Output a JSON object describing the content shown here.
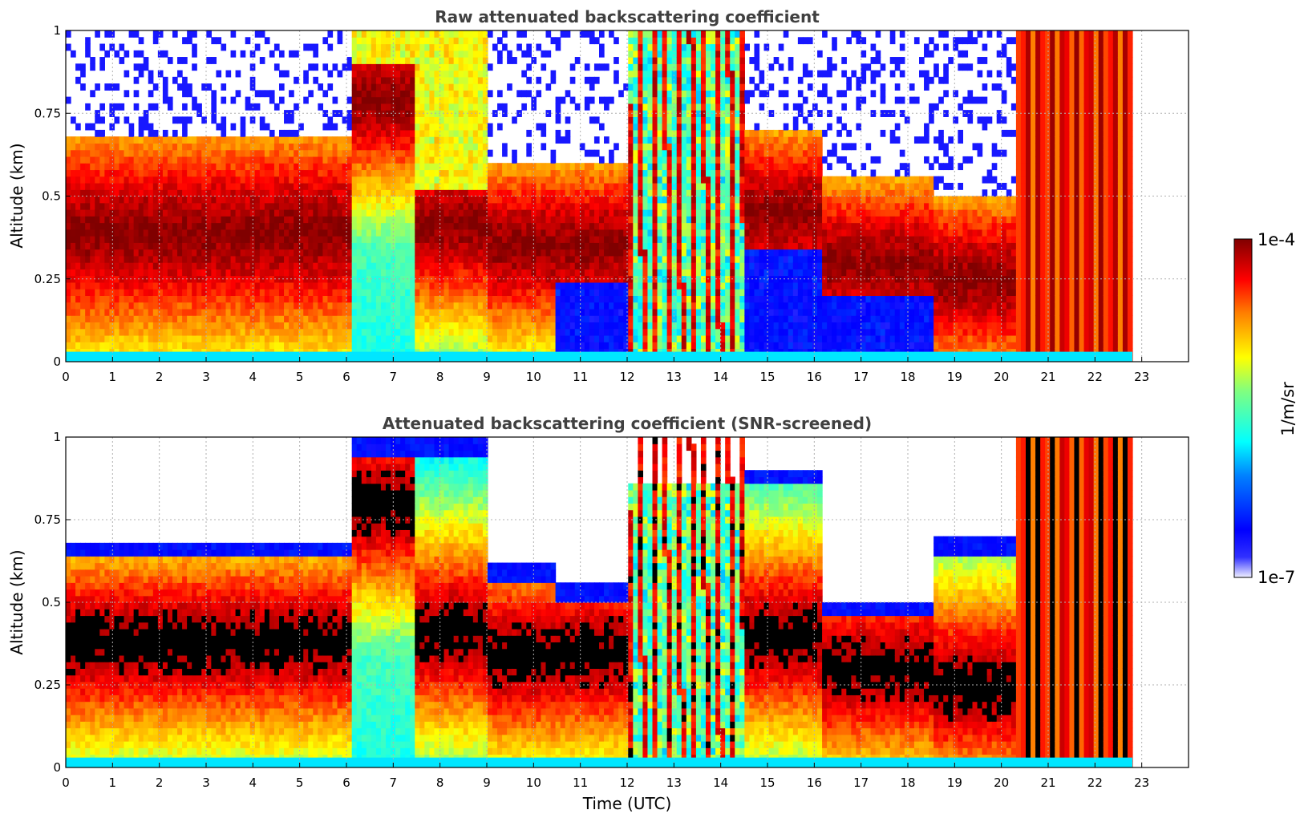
{
  "chart_data": [
    {
      "type": "heatmap",
      "title": "Raw attenuated backscattering coefficient",
      "xlabel": "",
      "ylabel": "Altitude (km)",
      "xlim": [
        0,
        24
      ],
      "ylim": [
        0,
        1
      ],
      "x_ticks": [
        "0",
        "1",
        "2",
        "3",
        "4",
        "5",
        "6",
        "7",
        "8",
        "9",
        "10",
        "11",
        "12",
        "13",
        "14",
        "15",
        "16",
        "17",
        "18",
        "19",
        "20",
        "21",
        "22",
        "23"
      ],
      "y_ticks": [
        "0",
        "0.25",
        "0.5",
        "0.75",
        "1"
      ],
      "grid": true,
      "data_end_time": 22.8,
      "bands": [
        {
          "start": 0,
          "end": 6.1,
          "layer_center": 0.39,
          "layer_depth": 0.12,
          "aloft": "sparse-noise"
        },
        {
          "start": 6.1,
          "end": 7.5,
          "layer_center": 0.8,
          "aloft": "aerosol-yellow"
        },
        {
          "start": 7.5,
          "end": 9.0,
          "layer_center": 0.41,
          "aloft": "aerosol-yellow"
        },
        {
          "start": 9.0,
          "end": 10.5,
          "layer_center": 0.35,
          "layer_depth": 0.1,
          "aloft": "sparse-noise"
        },
        {
          "start": 10.5,
          "end": 12.0,
          "layer_center": 0.35,
          "below": "low-signal-blue"
        },
        {
          "start": 12.0,
          "end": 14.5,
          "description": "precipitation-streaks"
        },
        {
          "start": 14.5,
          "end": 16.2,
          "layer_center": 0.45,
          "below": "low-signal-blue"
        },
        {
          "start": 16.2,
          "end": 18.5,
          "layer_center": 0.3,
          "below": "low-signal-blue"
        },
        {
          "start": 18.5,
          "end": 20.3,
          "layer_center": 0.25
        },
        {
          "start": 20.3,
          "end": 22.8,
          "description": "precipitation-full-column"
        }
      ]
    },
    {
      "type": "heatmap",
      "title": "Attenuated backscattering coefficient (SNR-screened)",
      "xlabel": "Time (UTC)",
      "ylabel": "Altitude (km)",
      "xlim": [
        0,
        24
      ],
      "ylim": [
        0,
        1
      ],
      "x_ticks": [
        "0",
        "1",
        "2",
        "3",
        "4",
        "5",
        "6",
        "7",
        "8",
        "9",
        "10",
        "11",
        "12",
        "13",
        "14",
        "15",
        "16",
        "17",
        "18",
        "19",
        "20",
        "21",
        "22",
        "23"
      ],
      "y_ticks": [
        "0",
        "0.25",
        "0.5",
        "0.75",
        "1"
      ],
      "grid": true,
      "data_end_time": 22.8,
      "saturated_color": "#000000",
      "bands": [
        {
          "start": 0,
          "end": 6.1,
          "layer_center": 0.38,
          "signal_top": 0.68
        },
        {
          "start": 6.1,
          "end": 7.5,
          "layer_center": 0.8,
          "signal_top": 1.0
        },
        {
          "start": 7.5,
          "end": 9.0,
          "layer_center": 0.41,
          "signal_top": 1.0
        },
        {
          "start": 9.0,
          "end": 10.5,
          "layer_center": 0.34,
          "signal_top": 0.62
        },
        {
          "start": 10.5,
          "end": 12.0,
          "layer_center": 0.35,
          "signal_top": 0.55
        },
        {
          "start": 12.0,
          "end": 14.5,
          "description": "precipitation-streaks"
        },
        {
          "start": 14.5,
          "end": 16.2,
          "signal_top": 0.9
        },
        {
          "start": 16.2,
          "end": 18.5,
          "layer_center": 0.3,
          "signal_top": 0.5
        },
        {
          "start": 18.5,
          "end": 20.3,
          "layer_center": 0.25,
          "signal_top": 0.7
        },
        {
          "start": 20.3,
          "end": 22.8,
          "description": "precipitation-full-column"
        }
      ]
    }
  ],
  "colorbar": {
    "max_label": "1e-4",
    "min_label": "1e-7",
    "unit_label": "1/m/sr",
    "colormap": "jet",
    "colors": [
      "#f0f0ff",
      "#0000ff",
      "#00ffff",
      "#ffff00",
      "#ff0000",
      "#800000"
    ]
  }
}
